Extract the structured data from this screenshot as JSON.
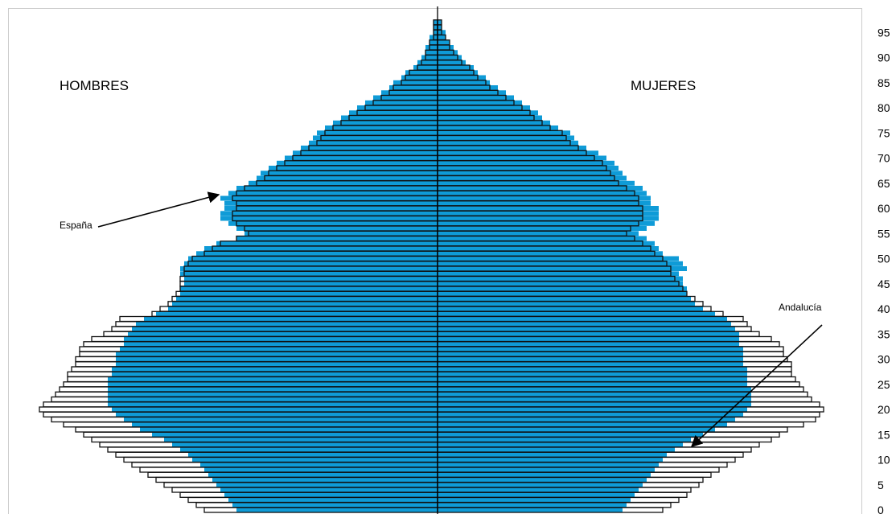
{
  "chart_data": {
    "type": "bar",
    "subtype": "population-pyramid",
    "title": "",
    "xlabel": "",
    "ylabel": "",
    "labels": {
      "left_side": "HOMBRES",
      "right_side": "MUJERES",
      "espana_annotation": "España",
      "andalucia_annotation": "Andalucía"
    },
    "y_ticks": [
      "0",
      "5",
      "10",
      "15",
      "20",
      "25",
      "30",
      "35",
      "40",
      "45",
      "50",
      "55",
      "60",
      "65",
      "70",
      "75",
      "80",
      "85",
      "90",
      "95"
    ],
    "ages": [
      0,
      1,
      2,
      3,
      4,
      5,
      6,
      7,
      8,
      9,
      10,
      11,
      12,
      13,
      14,
      15,
      16,
      17,
      18,
      19,
      20,
      21,
      22,
      23,
      24,
      25,
      26,
      27,
      28,
      29,
      30,
      31,
      32,
      33,
      34,
      35,
      36,
      37,
      38,
      39,
      40,
      41,
      42,
      43,
      44,
      45,
      46,
      47,
      48,
      49,
      50,
      51,
      52,
      53,
      54,
      55,
      56,
      57,
      58,
      59,
      60,
      61,
      62,
      63,
      64,
      65,
      66,
      67,
      68,
      69,
      70,
      71,
      72,
      73,
      74,
      75,
      76,
      77,
      78,
      79,
      80,
      81,
      82,
      83,
      84,
      85,
      86,
      87,
      88,
      89,
      90,
      91,
      92,
      93,
      94,
      95,
      96,
      97
    ],
    "axis_unit": "percent of population (relative)",
    "xlim": [
      -1.0,
      1.0
    ],
    "series": [
      {
        "name": "España",
        "color": "#0f9bd7",
        "male": [
          0.5,
          0.51,
          0.52,
          0.53,
          0.54,
          0.55,
          0.56,
          0.57,
          0.58,
          0.59,
          0.61,
          0.62,
          0.64,
          0.66,
          0.68,
          0.71,
          0.74,
          0.76,
          0.78,
          0.8,
          0.81,
          0.82,
          0.82,
          0.82,
          0.82,
          0.82,
          0.82,
          0.81,
          0.81,
          0.8,
          0.8,
          0.8,
          0.79,
          0.78,
          0.78,
          0.77,
          0.76,
          0.75,
          0.73,
          0.7,
          0.67,
          0.66,
          0.65,
          0.64,
          0.64,
          0.63,
          0.63,
          0.64,
          0.64,
          0.63,
          0.62,
          0.6,
          0.58,
          0.55,
          0.5,
          0.48,
          0.5,
          0.52,
          0.54,
          0.54,
          0.53,
          0.53,
          0.54,
          0.52,
          0.5,
          0.47,
          0.45,
          0.44,
          0.42,
          0.4,
          0.38,
          0.36,
          0.34,
          0.32,
          0.31,
          0.3,
          0.28,
          0.26,
          0.24,
          0.22,
          0.2,
          0.18,
          0.16,
          0.14,
          0.12,
          0.11,
          0.09,
          0.08,
          0.06,
          0.05,
          0.04,
          0.03,
          0.03,
          0.02,
          0.02,
          0.01,
          0.01,
          0.01
        ],
        "female": [
          0.46,
          0.47,
          0.48,
          0.49,
          0.5,
          0.51,
          0.52,
          0.53,
          0.54,
          0.55,
          0.56,
          0.57,
          0.59,
          0.61,
          0.63,
          0.66,
          0.69,
          0.72,
          0.74,
          0.76,
          0.77,
          0.78,
          0.78,
          0.78,
          0.78,
          0.77,
          0.77,
          0.77,
          0.77,
          0.76,
          0.76,
          0.76,
          0.76,
          0.75,
          0.75,
          0.75,
          0.74,
          0.73,
          0.72,
          0.69,
          0.66,
          0.64,
          0.63,
          0.62,
          0.62,
          0.61,
          0.61,
          0.6,
          0.62,
          0.61,
          0.6,
          0.56,
          0.55,
          0.54,
          0.52,
          0.5,
          0.52,
          0.54,
          0.55,
          0.55,
          0.55,
          0.53,
          0.53,
          0.52,
          0.51,
          0.49,
          0.47,
          0.46,
          0.45,
          0.44,
          0.42,
          0.4,
          0.37,
          0.35,
          0.34,
          0.33,
          0.3,
          0.28,
          0.26,
          0.25,
          0.23,
          0.21,
          0.19,
          0.17,
          0.15,
          0.13,
          0.12,
          0.1,
          0.09,
          0.07,
          0.06,
          0.05,
          0.04,
          0.03,
          0.02,
          0.02,
          0.01,
          0.01
        ]
      },
      {
        "name": "Andalucía",
        "color": "#ffffff",
        "male": [
          0.58,
          0.6,
          0.62,
          0.64,
          0.66,
          0.68,
          0.7,
          0.72,
          0.74,
          0.76,
          0.78,
          0.8,
          0.82,
          0.84,
          0.86,
          0.88,
          0.9,
          0.93,
          0.96,
          0.98,
          0.99,
          0.98,
          0.96,
          0.95,
          0.94,
          0.93,
          0.92,
          0.92,
          0.91,
          0.9,
          0.9,
          0.89,
          0.89,
          0.88,
          0.86,
          0.83,
          0.81,
          0.8,
          0.79,
          0.71,
          0.69,
          0.67,
          0.66,
          0.65,
          0.64,
          0.64,
          0.64,
          0.63,
          0.63,
          0.62,
          0.61,
          0.58,
          0.56,
          0.54,
          0.5,
          0.47,
          0.48,
          0.5,
          0.51,
          0.51,
          0.5,
          0.5,
          0.51,
          0.5,
          0.48,
          0.45,
          0.43,
          0.42,
          0.4,
          0.38,
          0.36,
          0.34,
          0.32,
          0.3,
          0.29,
          0.28,
          0.26,
          0.24,
          0.22,
          0.2,
          0.18,
          0.16,
          0.14,
          0.12,
          0.11,
          0.09,
          0.08,
          0.07,
          0.05,
          0.04,
          0.03,
          0.03,
          0.02,
          0.02,
          0.01,
          0.01,
          0.01,
          0.01
        ],
        "female": [
          0.56,
          0.58,
          0.6,
          0.62,
          0.63,
          0.65,
          0.66,
          0.68,
          0.7,
          0.72,
          0.74,
          0.76,
          0.78,
          0.8,
          0.83,
          0.85,
          0.87,
          0.91,
          0.94,
          0.95,
          0.96,
          0.95,
          0.93,
          0.92,
          0.91,
          0.9,
          0.89,
          0.88,
          0.88,
          0.88,
          0.87,
          0.86,
          0.86,
          0.85,
          0.83,
          0.8,
          0.78,
          0.77,
          0.76,
          0.71,
          0.68,
          0.66,
          0.64,
          0.62,
          0.61,
          0.6,
          0.59,
          0.58,
          0.58,
          0.57,
          0.56,
          0.54,
          0.53,
          0.51,
          0.49,
          0.47,
          0.48,
          0.5,
          0.51,
          0.51,
          0.51,
          0.5,
          0.5,
          0.49,
          0.47,
          0.45,
          0.44,
          0.43,
          0.42,
          0.41,
          0.39,
          0.37,
          0.35,
          0.33,
          0.32,
          0.31,
          0.28,
          0.26,
          0.24,
          0.23,
          0.21,
          0.19,
          0.17,
          0.15,
          0.13,
          0.12,
          0.1,
          0.09,
          0.08,
          0.06,
          0.05,
          0.04,
          0.03,
          0.03,
          0.02,
          0.01,
          0.01,
          0.01
        ]
      }
    ],
    "legend_placement": "none (inline annotations with arrows)",
    "grid": false
  }
}
